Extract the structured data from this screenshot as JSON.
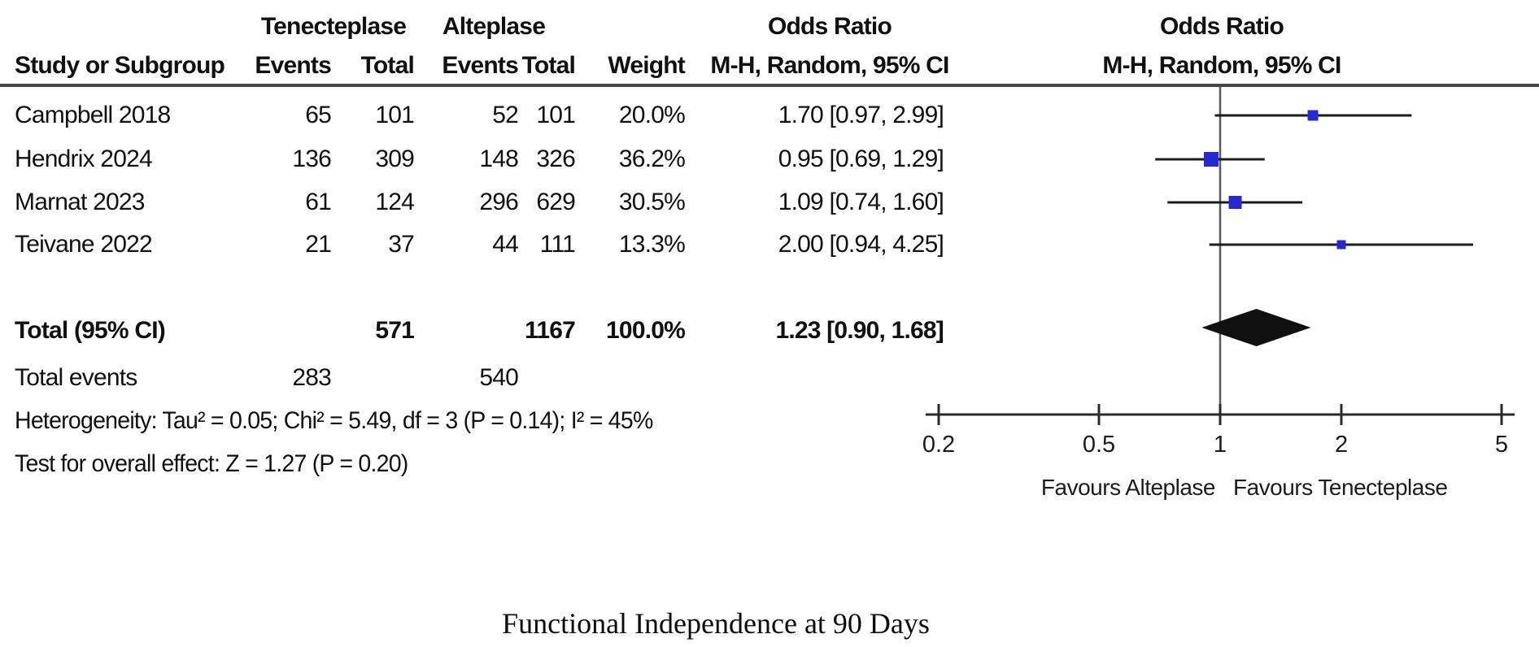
{
  "table": {
    "group_headers": {
      "tenecteplase": "Tenecteplase",
      "alteplase": "Alteplase",
      "odds_ratio_left": "Odds Ratio",
      "odds_ratio_right": "Odds Ratio"
    },
    "columns": {
      "study": "Study or Subgroup",
      "events1": "Events",
      "total1": "Total",
      "events2": "Events",
      "total2": "Total",
      "weight": "Weight",
      "ci_left": "M-H, Random, 95% CI",
      "ci_right": "M-H, Random, 95% CI"
    },
    "rows": [
      {
        "study": "Campbell 2018",
        "events1": "65",
        "total1": "101",
        "events2": "52",
        "total2": "101",
        "weight": "20.0%",
        "ci": "1.70 [0.97, 2.99]"
      },
      {
        "study": "Hendrix 2024",
        "events1": "136",
        "total1": "309",
        "events2": "148",
        "total2": "326",
        "weight": "36.2%",
        "ci": "0.95 [0.69, 1.29]"
      },
      {
        "study": "Marnat 2023",
        "events1": "61",
        "total1": "124",
        "events2": "296",
        "total2": "629",
        "weight": "30.5%",
        "ci": "1.09 [0.74, 1.60]"
      },
      {
        "study": "Teivane 2022",
        "events1": "21",
        "total1": "37",
        "events2": "44",
        "total2": "111",
        "weight": "13.3%",
        "ci": "2.00 [0.94, 4.25]"
      }
    ],
    "total_row": {
      "label": "Total (95% CI)",
      "total1": "571",
      "total2": "1167",
      "weight": "100.0%",
      "ci": "1.23 [0.90, 1.68]"
    },
    "total_events": {
      "label": "Total events",
      "events1": "283",
      "events2": "540"
    },
    "heterogeneity": "Heterogeneity: Tau² = 0.05; Chi² = 5.49, df = 3 (P = 0.14); I² = 45%",
    "overall_effect": "Test for overall effect: Z = 1.27 (P = 0.20)"
  },
  "chart_data": {
    "type": "scatter",
    "subtype": "forest-plot",
    "effect_measure": "Odds Ratio, M-H, Random, 95% CI",
    "x_scale": "log",
    "xlim": [
      0.2,
      5
    ],
    "x_ticks": [
      0.2,
      0.5,
      1,
      2,
      5
    ],
    "reference_line": 1,
    "studies": [
      {
        "name": "Campbell 2018",
        "or": 1.7,
        "ci_low": 0.97,
        "ci_high": 2.99,
        "weight_pct": 20.0
      },
      {
        "name": "Hendrix 2024",
        "or": 0.95,
        "ci_low": 0.69,
        "ci_high": 1.29,
        "weight_pct": 36.2
      },
      {
        "name": "Marnat 2023",
        "or": 1.09,
        "ci_low": 0.74,
        "ci_high": 1.6,
        "weight_pct": 30.5
      },
      {
        "name": "Teivane 2022",
        "or": 2.0,
        "ci_low": 0.94,
        "ci_high": 4.25,
        "weight_pct": 13.3
      }
    ],
    "total": {
      "or": 1.23,
      "ci_low": 0.9,
      "ci_high": 1.68
    },
    "axis_label_left": "Favours Alteplase",
    "axis_label_right": "Favours Tenecteplase",
    "marker_color": "#2828cf",
    "diamond_color": "#101010",
    "line_color": "#1c1c1c",
    "ref_line_color": "#595959"
  },
  "caption": "Functional Independence at 90 Days"
}
